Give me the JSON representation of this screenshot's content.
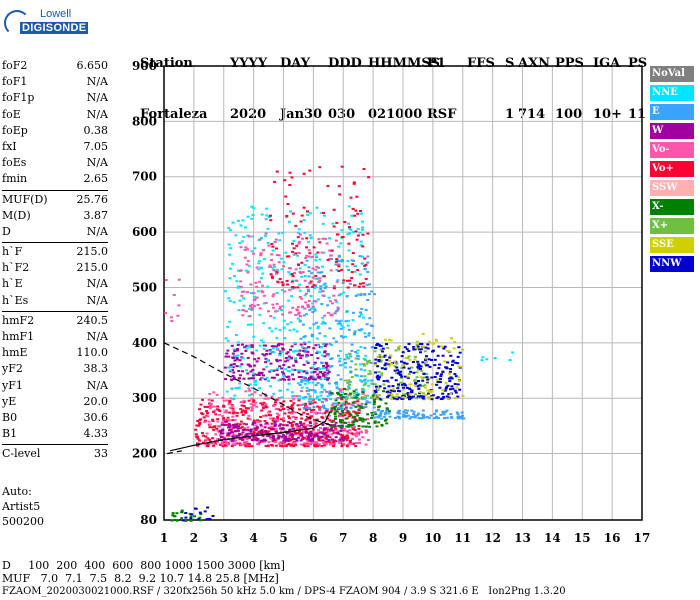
{
  "logo": {
    "line1": "Lowell",
    "line2": "DIGISONDE"
  },
  "header": {
    "row1": [
      "Station",
      "YYYY",
      "DAY",
      "DDD",
      "HHMMSS",
      "P1",
      "FFS",
      "S",
      "AXN",
      "PPS",
      "IGA",
      "PS"
    ],
    "row2": [
      "Fortaleza",
      "2020",
      "Jan30",
      "030",
      "021000",
      "RSF",
      "",
      "1",
      "714",
      "100",
      "10+",
      "11"
    ]
  },
  "params": {
    "group1": [
      [
        "foF2",
        "6.650"
      ],
      [
        "foF1",
        "N/A"
      ],
      [
        "foF1p",
        "N/A"
      ],
      [
        "foE",
        "N/A"
      ],
      [
        "foEp",
        "0.38"
      ],
      [
        "fxI",
        "7.05"
      ],
      [
        "foEs",
        "N/A"
      ],
      [
        "fmin",
        "2.65"
      ]
    ],
    "group2": [
      [
        "MUF(D)",
        "25.76"
      ],
      [
        "M(D)",
        "3.87"
      ],
      [
        "D",
        "N/A"
      ]
    ],
    "group3": [
      [
        "h`F",
        "215.0"
      ],
      [
        "h`F2",
        "215.0"
      ],
      [
        "h`E",
        "N/A"
      ],
      [
        "h`Es",
        "N/A"
      ]
    ],
    "group4": [
      [
        "hmF2",
        "240.5"
      ],
      [
        "hmF1",
        "N/A"
      ],
      [
        "hmE",
        "110.0"
      ],
      [
        "yF2",
        "38.3"
      ],
      [
        "yF1",
        "N/A"
      ],
      [
        "yE",
        "20.0"
      ],
      [
        "B0",
        "30.6"
      ],
      [
        "B1",
        "4.33"
      ]
    ],
    "group5": [
      [
        "C-level",
        "33"
      ]
    ]
  },
  "autoscale": {
    "line1": "Auto:",
    "line2": "Artist5",
    "line3": "500200"
  },
  "legend": [
    {
      "label": "NoVal",
      "color": "#808080"
    },
    {
      "label": "NNE",
      "color": "#00e5ff"
    },
    {
      "label": "E",
      "color": "#3aa3ff"
    },
    {
      "label": "W",
      "color": "#a000a0"
    },
    {
      "label": "Vo-",
      "color": "#ff55aa"
    },
    {
      "label": "Vo+",
      "color": "#ff0033"
    },
    {
      "label": "SSW",
      "color": "#ffb0b0"
    },
    {
      "label": "X-",
      "color": "#008000"
    },
    {
      "label": "X+",
      "color": "#70c040"
    },
    {
      "label": "SSE",
      "color": "#d0d000"
    },
    {
      "label": "NNW",
      "color": "#0000d0"
    }
  ],
  "footer": {
    "line1": "D     100  200  400  600  800 1000 1500 3000 [km]",
    "line2": "MUF   7.0  7.1  7.5  8.2  9.2 10.7 14.8 25.8 [MHz]",
    "line3": "FZAOM_2020030021000.RSF / 320fx256h 50 kHz 5.0 km / DPS-4 FZAOM 904 / 3.9 S 321.6 E   Ion2Png 1.3.20"
  },
  "chart_data": {
    "type": "scatter",
    "xlim": [
      1,
      17
    ],
    "ylim": [
      80,
      900
    ],
    "x_ticks": [
      "1",
      "2",
      "3",
      "4",
      "5",
      "6",
      "7",
      "8",
      "9",
      "10",
      "11",
      "12",
      "13",
      "14",
      "15",
      "16",
      "17"
    ],
    "y_ticks": [
      "80",
      "200",
      "300",
      "400",
      "500",
      "600",
      "700",
      "800",
      "900"
    ],
    "grid": true,
    "legend_position": "right",
    "traces": [
      {
        "name": "profile",
        "style": "solid",
        "points": [
          [
            1.2,
            205
          ],
          [
            2,
            215
          ],
          [
            3,
            225
          ],
          [
            4,
            232
          ],
          [
            5,
            238
          ],
          [
            6,
            246
          ],
          [
            6.4,
            258
          ],
          [
            6.55,
            275
          ]
        ]
      },
      {
        "name": "profile-top",
        "style": "dashed",
        "points": [
          [
            1,
            400
          ],
          [
            2,
            375
          ],
          [
            3,
            345
          ],
          [
            4,
            318
          ],
          [
            5,
            288
          ],
          [
            5.6,
            270
          ],
          [
            6.2,
            258
          ],
          [
            6.55,
            252
          ]
        ]
      },
      {
        "name": "profile-lower",
        "style": "dashed",
        "points": [
          [
            1.1,
            200
          ],
          [
            1.6,
            205
          ]
        ]
      }
    ],
    "echo_clusters": [
      {
        "series": "Vo+",
        "x": [
          2.0,
          7.5
        ],
        "y": [
          215,
          300
        ],
        "n": 500
      },
      {
        "series": "Vo-",
        "x": [
          2.3,
          7.8
        ],
        "y": [
          218,
          320
        ],
        "n": 320
      },
      {
        "series": "W",
        "x": [
          2.8,
          7.0
        ],
        "y": [
          225,
          260
        ],
        "n": 200
      },
      {
        "series": "W",
        "x": [
          3.0,
          6.5
        ],
        "y": [
          335,
          400
        ],
        "n": 230
      },
      {
        "series": "NNE",
        "x": [
          3.0,
          7.8
        ],
        "y": [
          300,
          650
        ],
        "n": 380
      },
      {
        "series": "E",
        "x": [
          5.5,
          8.0
        ],
        "y": [
          280,
          560
        ],
        "n": 220
      },
      {
        "series": "Vo-",
        "x": [
          3.5,
          6.8
        ],
        "y": [
          450,
          600
        ],
        "n": 160
      },
      {
        "series": "Vo+",
        "x": [
          4.5,
          7.8
        ],
        "y": [
          500,
          720
        ],
        "n": 120
      },
      {
        "series": "X-",
        "x": [
          6.5,
          8.5
        ],
        "y": [
          250,
          320
        ],
        "n": 110
      },
      {
        "series": "X+",
        "x": [
          7.0,
          9.8
        ],
        "y": [
          300,
          400
        ],
        "n": 110
      },
      {
        "series": "NNW",
        "x": [
          8.0,
          10.9
        ],
        "y": [
          300,
          400
        ],
        "n": 240
      },
      {
        "series": "SSE",
        "x": [
          8.0,
          11.0
        ],
        "y": [
          300,
          420
        ],
        "n": 80
      },
      {
        "series": "E",
        "x": [
          8.0,
          11.0
        ],
        "y": [
          265,
          280
        ],
        "n": 90
      },
      {
        "series": "NNE",
        "x": [
          11.5,
          13.0
        ],
        "y": [
          370,
          385
        ],
        "n": 6
      },
      {
        "series": "Vo-",
        "x": [
          1.0,
          1.8
        ],
        "y": [
          440,
          520
        ],
        "n": 8
      },
      {
        "series": "X-",
        "x": [
          1.2,
          2.2
        ],
        "y": [
          80,
          100
        ],
        "n": 20
      },
      {
        "series": "NNW",
        "x": [
          1.5,
          2.6
        ],
        "y": [
          80,
          105
        ],
        "n": 14
      }
    ]
  }
}
